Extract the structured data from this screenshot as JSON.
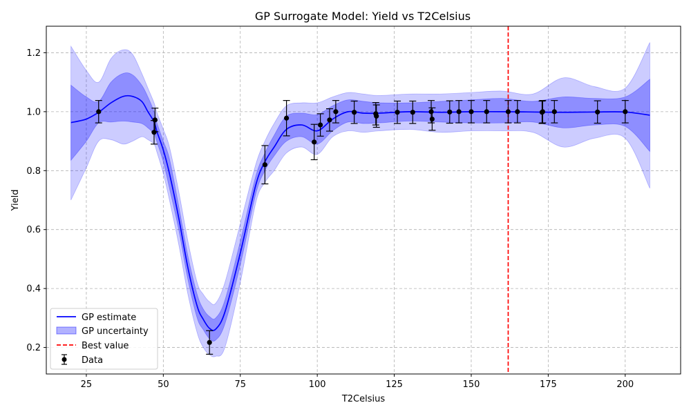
{
  "chart_data": {
    "type": "line",
    "title": "GP Surrogate Model: Yield vs T2Celsius",
    "xlabel": "T2Celsius",
    "ylabel": "Yield",
    "xlim": [
      12,
      218
    ],
    "ylim": [
      0.11,
      1.29
    ],
    "xticks": [
      25,
      50,
      75,
      100,
      125,
      150,
      175,
      200
    ],
    "yticks": [
      0.2,
      0.4,
      0.6,
      0.8,
      1.0,
      1.2
    ],
    "grid": true,
    "legend_position": "lower-left",
    "legend": [
      "GP estimate",
      "GP uncertainty",
      "Best value",
      "Data"
    ],
    "colors": {
      "estimate": "#0000ff",
      "band": "#0000ff",
      "best": "#ff0000",
      "data": "#000000",
      "grid": "#b0b0b0"
    },
    "gp_estimate": {
      "x": [
        20,
        25,
        29,
        33,
        37,
        40,
        43,
        45,
        47,
        48,
        50,
        52,
        55,
        58,
        61,
        63,
        65,
        67,
        70,
        75,
        80,
        83,
        86,
        90,
        95,
        100,
        105,
        110,
        115,
        120,
        130,
        140,
        150,
        160,
        170,
        180,
        190,
        200,
        208
      ],
      "y": [
        0.963,
        0.975,
        0.998,
        1.03,
        1.052,
        1.052,
        1.035,
        1.0,
        0.965,
        0.93,
        0.87,
        0.79,
        0.64,
        0.47,
        0.34,
        0.295,
        0.265,
        0.262,
        0.32,
        0.52,
        0.75,
        0.83,
        0.88,
        0.94,
        0.955,
        0.935,
        0.975,
        1.0,
        0.995,
        0.995,
        1.0,
        0.998,
        1.0,
        1.0,
        0.999,
        0.998,
        0.999,
        0.999,
        0.988
      ]
    },
    "band_inner": {
      "upper": [
        1.09,
        1.05,
        1.035,
        1.1,
        1.13,
        1.125,
        1.09,
        1.05,
        1.0,
        0.96,
        0.9,
        0.84,
        0.68,
        0.51,
        0.38,
        0.33,
        0.305,
        0.3,
        0.36,
        0.56,
        0.78,
        0.86,
        0.92,
        0.985,
        0.995,
        0.99,
        1.02,
        1.04,
        1.035,
        1.03,
        1.03,
        1.035,
        1.04,
        1.045,
        1.035,
        1.05,
        1.045,
        1.05,
        1.11
      ],
      "lower": [
        0.835,
        0.9,
        0.962,
        0.965,
        0.968,
        0.965,
        0.96,
        0.945,
        0.925,
        0.895,
        0.83,
        0.74,
        0.6,
        0.43,
        0.3,
        0.26,
        0.23,
        0.225,
        0.28,
        0.48,
        0.72,
        0.8,
        0.85,
        0.9,
        0.915,
        0.89,
        0.935,
        0.965,
        0.96,
        0.962,
        0.968,
        0.965,
        0.962,
        0.962,
        0.965,
        0.945,
        0.955,
        0.95,
        0.865
      ]
    },
    "band_outer": {
      "upper": [
        1.222,
        1.14,
        1.1,
        1.18,
        1.21,
        1.195,
        1.13,
        1.08,
        1.03,
        0.995,
        0.94,
        0.88,
        0.73,
        0.56,
        0.42,
        0.38,
        0.355,
        0.35,
        0.42,
        0.62,
        0.82,
        0.9,
        0.96,
        1.02,
        1.03,
        1.03,
        1.05,
        1.065,
        1.06,
        1.055,
        1.06,
        1.06,
        1.065,
        1.07,
        1.06,
        1.115,
        1.085,
        1.08,
        1.235
      ],
      "lower": [
        0.7,
        0.81,
        0.9,
        0.905,
        0.89,
        0.9,
        0.915,
        0.905,
        0.89,
        0.86,
        0.79,
        0.7,
        0.55,
        0.38,
        0.25,
        0.2,
        0.175,
        0.17,
        0.2,
        0.42,
        0.69,
        0.76,
        0.8,
        0.86,
        0.88,
        0.855,
        0.915,
        0.935,
        0.93,
        0.935,
        0.94,
        0.93,
        0.935,
        0.935,
        0.93,
        0.88,
        0.91,
        0.91,
        0.74
      ]
    },
    "best_value_x": 162,
    "data_points": [
      {
        "x": 29,
        "y": 1.0,
        "err": 0.038
      },
      {
        "x": 47,
        "y": 0.93,
        "err": 0.04
      },
      {
        "x": 47.3,
        "y": 0.972,
        "err": 0.04
      },
      {
        "x": 65,
        "y": 0.217,
        "err": 0.04
      },
      {
        "x": 83,
        "y": 0.82,
        "err": 0.065
      },
      {
        "x": 90,
        "y": 0.978,
        "err": 0.06
      },
      {
        "x": 99,
        "y": 0.897,
        "err": 0.06
      },
      {
        "x": 101,
        "y": 0.955,
        "err": 0.038
      },
      {
        "x": 104,
        "y": 0.972,
        "err": 0.038
      },
      {
        "x": 106,
        "y": 1.0,
        "err": 0.038
      },
      {
        "x": 112,
        "y": 0.998,
        "err": 0.038
      },
      {
        "x": 119,
        "y": 0.993,
        "err": 0.038
      },
      {
        "x": 119.2,
        "y": 0.985,
        "err": 0.038
      },
      {
        "x": 126,
        "y": 0.998,
        "err": 0.038
      },
      {
        "x": 131,
        "y": 0.998,
        "err": 0.038
      },
      {
        "x": 137,
        "y": 1.0,
        "err": 0.038
      },
      {
        "x": 137.3,
        "y": 0.975,
        "err": 0.038
      },
      {
        "x": 143,
        "y": 0.999,
        "err": 0.038
      },
      {
        "x": 146,
        "y": 1.0,
        "err": 0.038
      },
      {
        "x": 150,
        "y": 1.0,
        "err": 0.038
      },
      {
        "x": 155,
        "y": 1.0,
        "err": 0.038
      },
      {
        "x": 162,
        "y": 1.0,
        "err": 0.038
      },
      {
        "x": 165,
        "y": 1.0,
        "err": 0.038
      },
      {
        "x": 173,
        "y": 0.998,
        "err": 0.038
      },
      {
        "x": 173.2,
        "y": 1.0,
        "err": 0.038
      },
      {
        "x": 177,
        "y": 1.0,
        "err": 0.038
      },
      {
        "x": 191,
        "y": 0.999,
        "err": 0.038
      },
      {
        "x": 200,
        "y": 1.0,
        "err": 0.038
      }
    ]
  }
}
